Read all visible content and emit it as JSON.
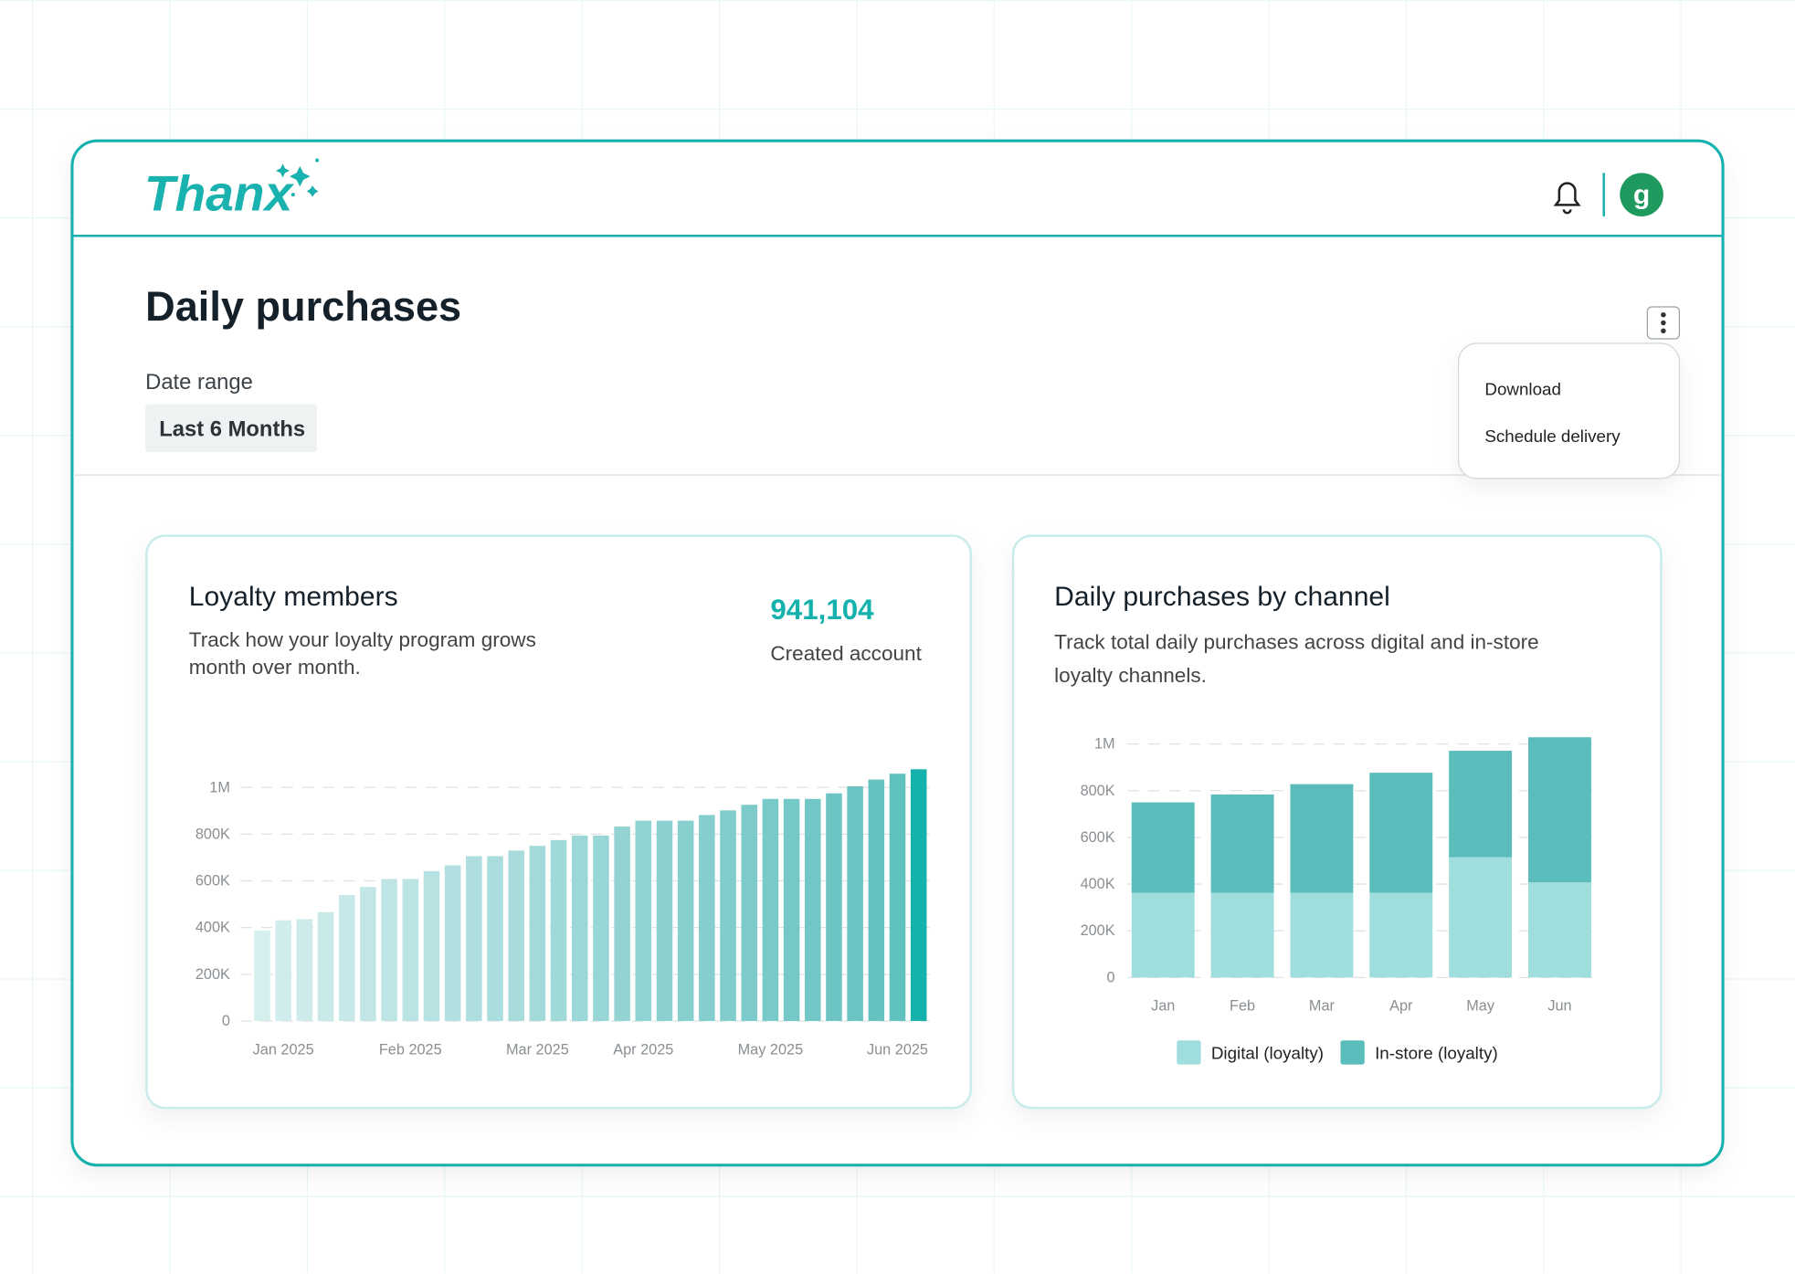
{
  "header": {
    "logo": "Thanx",
    "avatar": "g"
  },
  "page": {
    "title": "Daily purchases",
    "date_range_label": "Date range",
    "date_range_value": "Last 6 Months"
  },
  "menu": {
    "items": [
      "Download",
      "Schedule delivery"
    ]
  },
  "kpi": {
    "value": "941,104",
    "label": "Created account"
  },
  "chart_data": [
    {
      "type": "bar",
      "title": "Loyalty members",
      "subtitle": [
        "Track how your loyalty program grows",
        "month over month."
      ],
      "categories": [
        null,
        "Jan 2025",
        null,
        null,
        null,
        null,
        null,
        "Feb 2025",
        null,
        null,
        null,
        null,
        null,
        "Mar 2025",
        null,
        null,
        null,
        null,
        "Apr 2025",
        null,
        null,
        null,
        null,
        null,
        "May 2025",
        null,
        null,
        null,
        null,
        null,
        "Jun 2025",
        null
      ],
      "values": [
        387000,
        431000,
        436000,
        466000,
        539000,
        574000,
        608000,
        608000,
        642000,
        667000,
        706000,
        706000,
        730000,
        750000,
        775000,
        794000,
        794000,
        833000,
        858000,
        858000,
        858000,
        882000,
        902000,
        926000,
        951000,
        951000,
        951000,
        975000,
        1005000,
        1034000,
        1059000,
        1078000
      ],
      "color_range": [
        "#d5eeee",
        "#5dbfbd"
      ],
      "highlight_color": "#14b1ad",
      "ylim": [
        0,
        1100000
      ],
      "yticks": [
        0,
        {
          "value": 200000,
          "label": "200K"
        },
        {
          "value": 400000,
          "label": "400K"
        },
        {
          "value": 600000,
          "label": "600K"
        },
        {
          "value": 800000,
          "label": "800K"
        },
        {
          "value": 1000000,
          "label": "1M"
        }
      ],
      "grid": true
    },
    {
      "type": "stacked_bar",
      "title": "Daily purchases by channel",
      "subtitle": [
        "Track total daily purchases across digital and in-store",
        "loyalty channels."
      ],
      "categories": [
        "Jan",
        "Feb",
        "Mar",
        "Apr",
        "May",
        "Jun"
      ],
      "series": [
        {
          "name": "Digital (loyalty)",
          "color": "#a0dedd",
          "values": [
            363000,
            363000,
            363000,
            363000,
            515000,
            407000
          ]
        },
        {
          "name": "In-store (loyalty)",
          "color": "#5bbdbb",
          "values": [
            387000,
            421000,
            465000,
            514000,
            456000,
            622000
          ]
        }
      ],
      "ylim": [
        0,
        1050000
      ],
      "yticks": [
        0,
        {
          "value": 200000,
          "label": "200K"
        },
        {
          "value": 400000,
          "label": "400K"
        },
        {
          "value": 600000,
          "label": "600K"
        },
        {
          "value": 800000,
          "label": "800K"
        },
        {
          "value": 1000000,
          "label": "1M"
        }
      ],
      "grid": true,
      "legend": "bottom"
    }
  ]
}
